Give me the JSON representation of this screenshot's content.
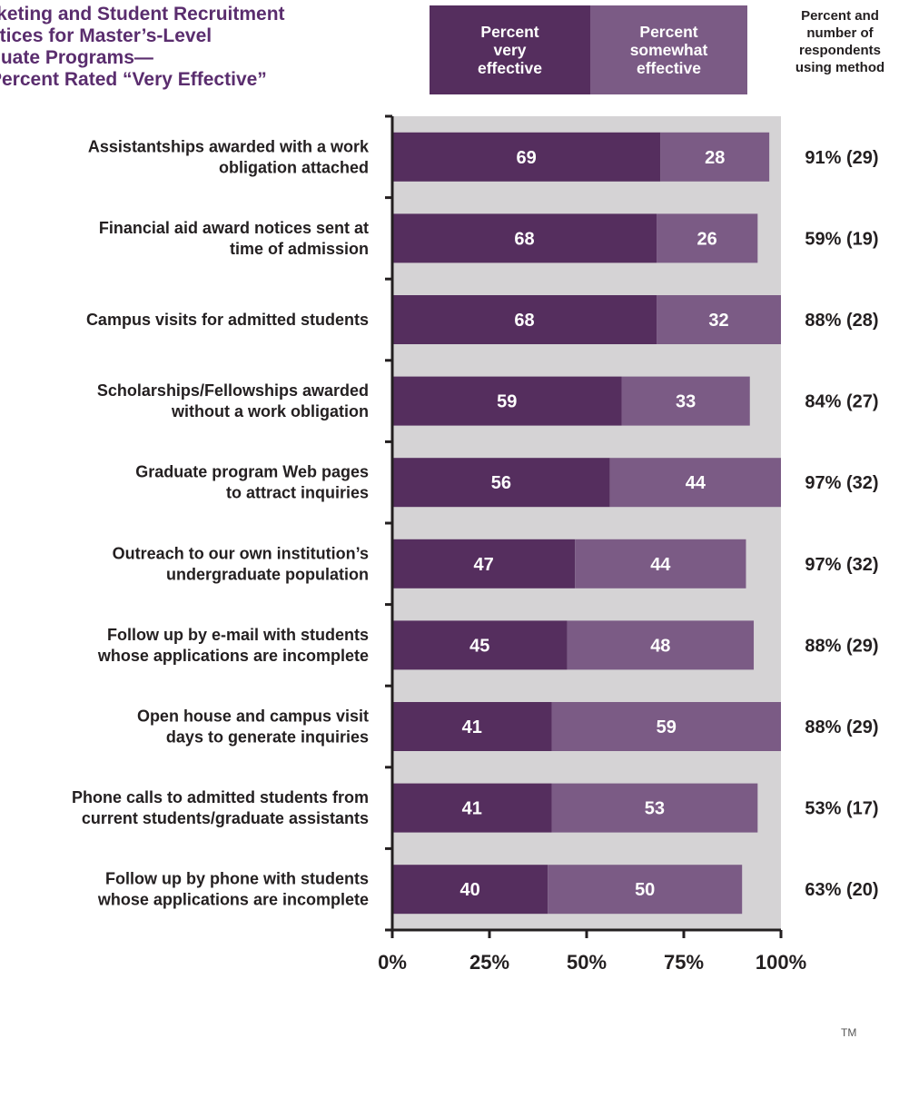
{
  "header": {
    "title": "rketing and Student Recruitment\nctices for Master’s-Level\nduate Programs—\nPercent Rated “Very Effective”",
    "column_header": "Percent and\nnumber of\nrespondents\nusing method",
    "trademark": "TM"
  },
  "chart_data": {
    "type": "bar",
    "orientation": "horizontal",
    "stacked": true,
    "xlim": [
      0,
      100
    ],
    "x_tick_labels": [
      "0%",
      "25%",
      "50%",
      "75%",
      "100%"
    ],
    "legend_position": "top",
    "categories": [
      "Assistantships awarded with a work\nobligation attached",
      "Financial aid award notices sent at\ntime of admission",
      "Campus visits for admitted students",
      "Scholarships/Fellowships awarded\nwithout a work obligation",
      "Graduate program Web pages\nto attract inquiries",
      "Outreach to our own institution’s\nundergraduate population",
      "Follow up by e-mail with students\nwhose applications are incomplete",
      "Open house and campus visit\ndays to generate inquiries",
      "Phone calls to admitted students from\ncurrent students/graduate assistants",
      "Follow up by phone with students\nwhose applications are incomplete"
    ],
    "series": [
      {
        "name": "Percent\nvery\neffective",
        "color": "#552e5e",
        "values": [
          69,
          68,
          68,
          59,
          56,
          47,
          45,
          41,
          41,
          40
        ]
      },
      {
        "name": "Percent\nsomewhat\neffective",
        "color": "#7b5b85",
        "values": [
          28,
          26,
          32,
          33,
          44,
          44,
          48,
          59,
          53,
          50
        ]
      }
    ],
    "usage": [
      "91% (29)",
      "59% (19)",
      "88% (28)",
      "84% (27)",
      "97% (32)",
      "97% (32)",
      "88% (29)",
      "88% (29)",
      "53% (17)",
      "63% (20)"
    ],
    "plot_background": "#d5d3d5",
    "axis_color": "#231f20"
  }
}
